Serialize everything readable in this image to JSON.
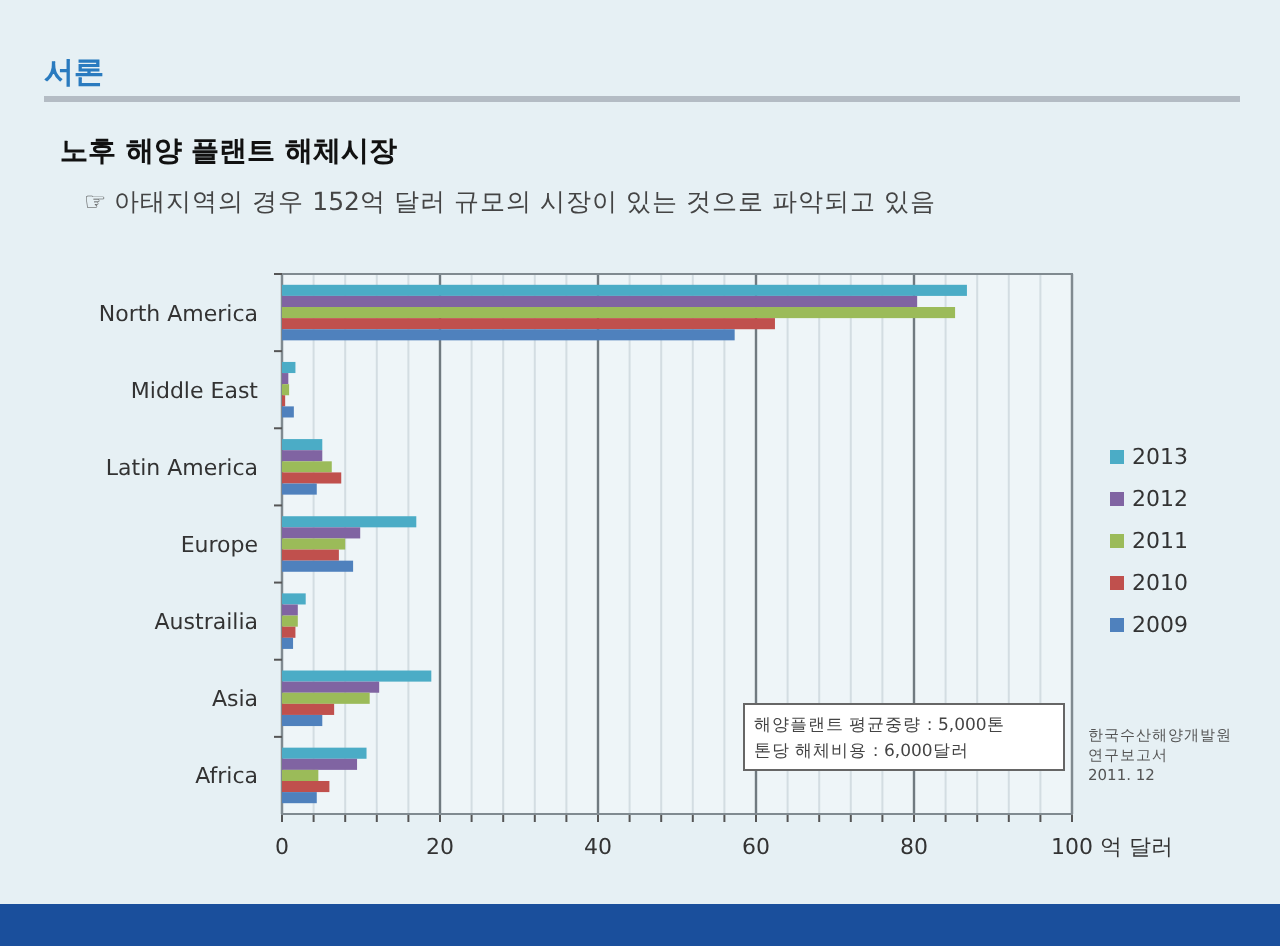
{
  "chart_data": {
    "type": "bar",
    "orientation": "horizontal",
    "title": "노후 해양 플랜트 해체시장",
    "subtitle": "☞ 아태지역의 경우 152억 달러 규모의 시장이 있는 것으로 파악되고 있음",
    "xlabel": "억 달러",
    "annotations": [
      "서론",
      "해양플랜트 평균중량 : 5,000톤\n톤당 해체비용 : 6,000달러",
      "한국수산해양개발원\n연구보고서\n2011. 12"
    ],
    "categories": [
      "North America",
      "Middle East",
      "Latin America",
      "Europe",
      "Austrailia",
      "Asia",
      "Africa"
    ],
    "series": [
      {
        "name": "2013",
        "color": "#4bacc6",
        "values": [
          86.7,
          1.7,
          5.1,
          17.0,
          3.0,
          18.9,
          10.7
        ]
      },
      {
        "name": "2012",
        "color": "#8064a2",
        "values": [
          80.4,
          0.8,
          5.1,
          9.9,
          2.0,
          12.3,
          9.5
        ]
      },
      {
        "name": "2011",
        "color": "#9bbb59",
        "values": [
          85.2,
          0.9,
          6.3,
          8.0,
          2.0,
          11.1,
          4.6
        ]
      },
      {
        "name": "2010",
        "color": "#c0504d",
        "values": [
          62.4,
          0.4,
          7.5,
          7.2,
          1.7,
          6.6,
          6.0
        ]
      },
      {
        "name": "2009",
        "color": "#4f81bd",
        "values": [
          57.3,
          1.5,
          4.4,
          9.0,
          1.4,
          5.1,
          4.4
        ]
      }
    ],
    "xlim": [
      0,
      100
    ],
    "xticks": [
      0,
      {
        "value": 4,
        "label": null
      },
      {
        "value": 8,
        "label": null
      },
      {
        "value": 12,
        "label": null
      },
      {
        "value": 16,
        "label": null
      },
      20,
      {
        "value": 24,
        "label": null
      },
      {
        "value": 28,
        "label": null
      },
      {
        "value": 32,
        "label": null
      },
      {
        "value": 36,
        "label": null
      },
      40,
      {
        "value": 44,
        "label": null
      },
      {
        "value": 48,
        "label": null
      },
      {
        "value": 52,
        "label": null
      },
      {
        "value": 56,
        "label": null
      },
      60,
      {
        "value": 64,
        "label": null
      },
      {
        "value": 68,
        "label": null
      },
      {
        "value": 72,
        "label": null
      },
      {
        "value": 76,
        "label": null
      },
      80,
      {
        "value": 84,
        "label": null
      },
      {
        "value": 88,
        "label": null
      },
      {
        "value": 92,
        "label": null
      },
      {
        "value": 96,
        "label": null
      },
      100
    ],
    "grid": "x",
    "legend": "right"
  }
}
